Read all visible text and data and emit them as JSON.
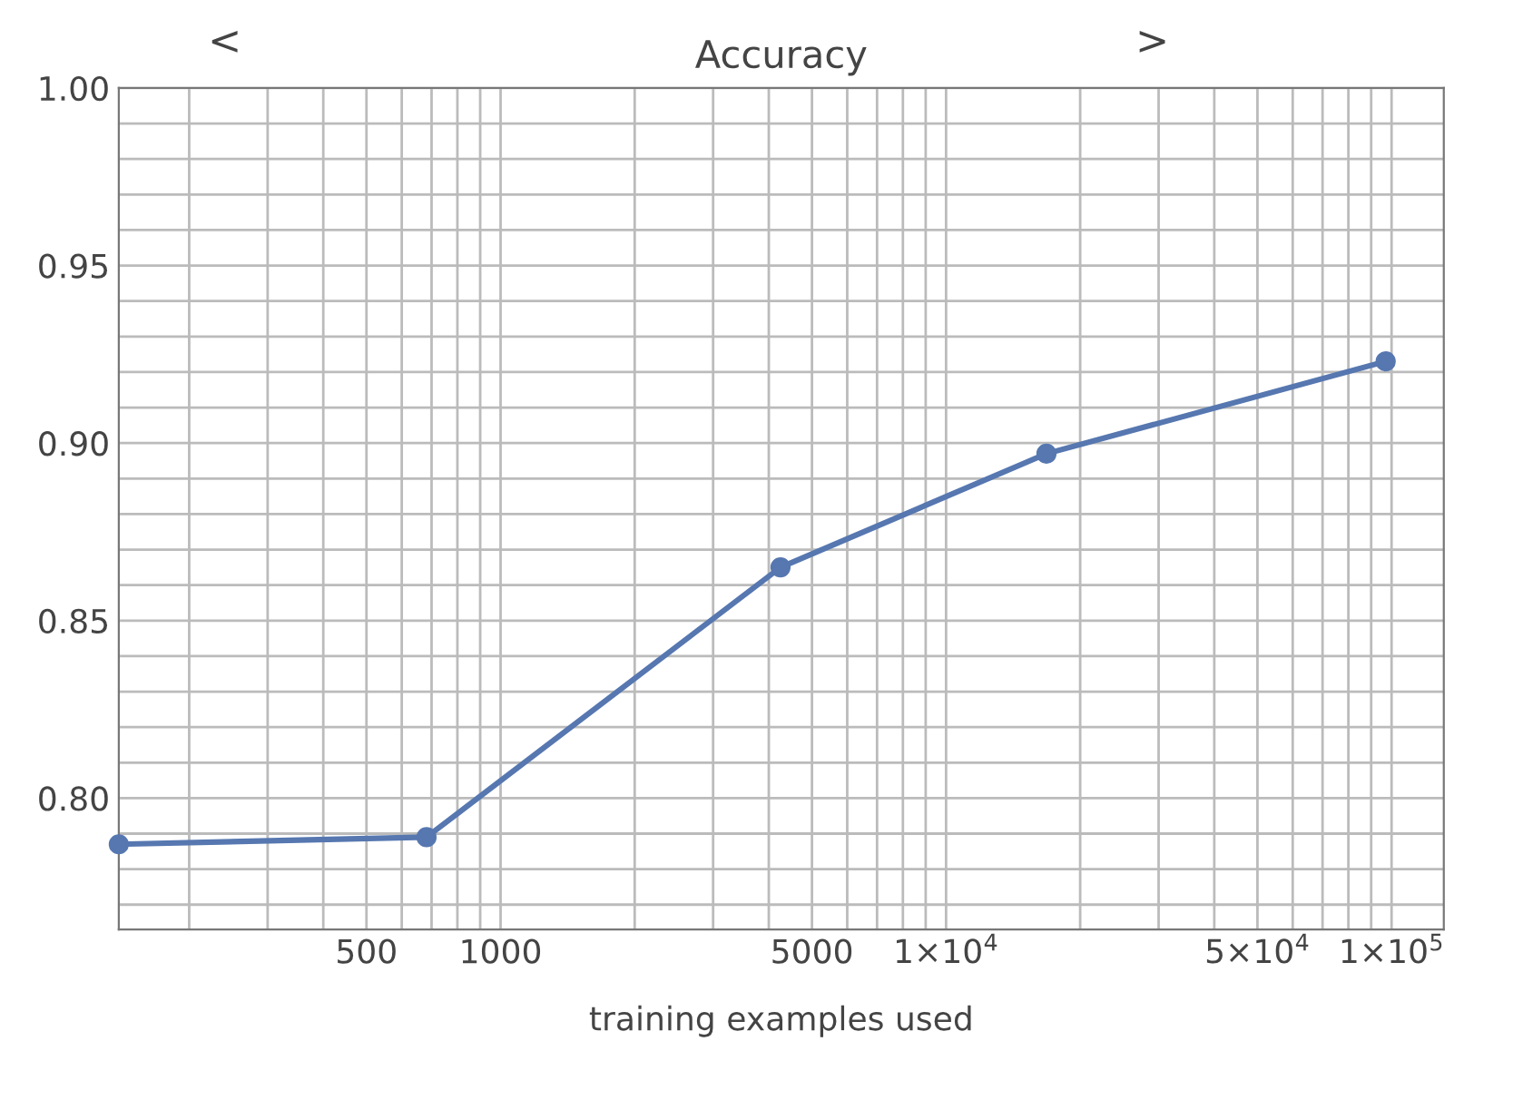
{
  "chart_data": {
    "type": "line",
    "title": "Accuracy",
    "xlabel": "training examples used",
    "annotations": [
      "<",
      ">"
    ],
    "x": [
      139,
      682,
      4250,
      16800,
      97000
    ],
    "series": [
      {
        "color": "#5677b0",
        "values": [
          0.787,
          0.789,
          0.865,
          0.897,
          0.923
        ]
      }
    ],
    "log": "x",
    "marker": "circle",
    "line_style": "solid",
    "grid": true,
    "xlim": [
      139,
      131000
    ],
    "ylim": [
      0.763,
      1.0
    ],
    "xticks": [
      {
        "value": 200,
        "label": null
      },
      {
        "value": 300,
        "label": null
      },
      {
        "value": 400,
        "label": null
      },
      500,
      {
        "value": 600,
        "label": null
      },
      {
        "value": 700,
        "label": null
      },
      {
        "value": 800,
        "label": null
      },
      {
        "value": 900,
        "label": null
      },
      1000,
      {
        "value": 2000,
        "label": null
      },
      {
        "value": 3000,
        "label": null
      },
      {
        "value": 4000,
        "label": null
      },
      5000,
      {
        "value": 6000,
        "label": null
      },
      {
        "value": 7000,
        "label": null
      },
      {
        "value": 8000,
        "label": null
      },
      {
        "value": 9000,
        "label": null
      },
      {
        "value": 10000,
        "label": "1×10$^{4}$"
      },
      {
        "value": 20000,
        "label": null
      },
      {
        "value": 30000,
        "label": null
      },
      {
        "value": 40000,
        "label": null
      },
      {
        "value": 50000,
        "label": "5×10$^{4}$"
      },
      {
        "value": 60000,
        "label": null
      },
      {
        "value": 70000,
        "label": null
      },
      {
        "value": 80000,
        "label": null
      },
      {
        "value": 90000,
        "label": null
      },
      {
        "value": 100000,
        "label": "1×10$^{5}$"
      }
    ],
    "yticks": [
      {
        "value": 0.77,
        "label": null
      },
      {
        "value": 0.78,
        "label": null
      },
      {
        "value": 0.79,
        "label": null
      },
      {
        "value": 0.8,
        "label": "0.80"
      },
      {
        "value": 0.81,
        "label": null
      },
      {
        "value": 0.82,
        "label": null
      },
      {
        "value": 0.83,
        "label": null
      },
      {
        "value": 0.84,
        "label": null
      },
      0.85,
      {
        "value": 0.86,
        "label": null
      },
      {
        "value": 0.87,
        "label": null
      },
      {
        "value": 0.88,
        "label": null
      },
      {
        "value": 0.89,
        "label": null
      },
      {
        "value": 0.9,
        "label": "0.90"
      },
      {
        "value": 0.91,
        "label": null
      },
      {
        "value": 0.92,
        "label": null
      },
      {
        "value": 0.93,
        "label": null
      },
      {
        "value": 0.94,
        "label": null
      },
      0.95,
      {
        "value": 0.96,
        "label": null
      },
      {
        "value": 0.97,
        "label": null
      },
      {
        "value": 0.98,
        "label": null
      },
      {
        "value": 0.99,
        "label": null
      },
      {
        "value": 1.0,
        "label": "1.00"
      }
    ]
  }
}
